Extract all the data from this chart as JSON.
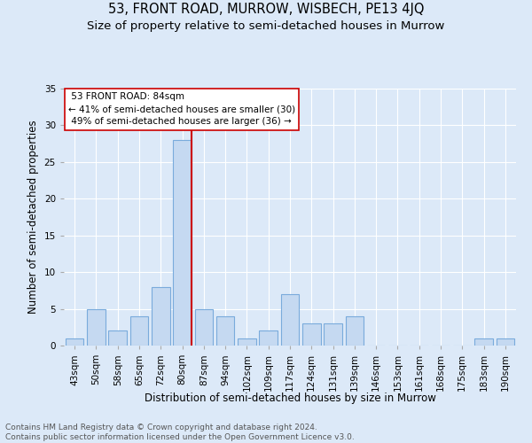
{
  "title": "53, FRONT ROAD, MURROW, WISBECH, PE13 4JQ",
  "subtitle": "Size of property relative to semi-detached houses in Murrow",
  "xlabel": "Distribution of semi-detached houses by size in Murrow",
  "ylabel": "Number of semi-detached properties",
  "categories": [
    "43sqm",
    "50sqm",
    "58sqm",
    "65sqm",
    "72sqm",
    "80sqm",
    "87sqm",
    "94sqm",
    "102sqm",
    "109sqm",
    "117sqm",
    "124sqm",
    "131sqm",
    "139sqm",
    "146sqm",
    "153sqm",
    "161sqm",
    "168sqm",
    "175sqm",
    "183sqm",
    "190sqm"
  ],
  "values": [
    1,
    5,
    2,
    4,
    8,
    28,
    5,
    4,
    1,
    2,
    7,
    3,
    3,
    4,
    0,
    0,
    0,
    0,
    0,
    1,
    1
  ],
  "bar_color": "#c5d9f1",
  "bar_edge_color": "#7aabdc",
  "highlight_index": 5,
  "highlight_line_color": "#cc0000",
  "property_label": "53 FRONT ROAD: 84sqm",
  "pct_smaller": 41,
  "count_smaller": 30,
  "pct_larger": 49,
  "count_larger": 36,
  "annotation_box_color": "#ffffff",
  "annotation_box_edge": "#cc0000",
  "background_color": "#dce9f8",
  "grid_color": "#ffffff",
  "ylim": [
    0,
    35
  ],
  "yticks": [
    0,
    5,
    10,
    15,
    20,
    25,
    30,
    35
  ],
  "footer": "Contains HM Land Registry data © Crown copyright and database right 2024.\nContains public sector information licensed under the Open Government Licence v3.0.",
  "title_fontsize": 10.5,
  "subtitle_fontsize": 9.5,
  "axis_label_fontsize": 8.5,
  "tick_fontsize": 7.5,
  "footer_fontsize": 6.5
}
